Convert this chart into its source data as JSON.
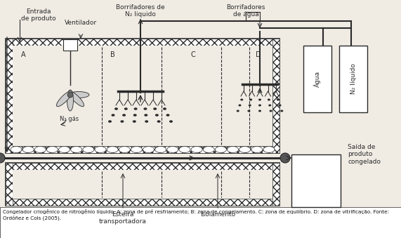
{
  "bg_color": "#f0ece4",
  "line_color": "#2a2a2a",
  "fig_bg": "#f0ece4",
  "white": "#ffffff",
  "caption": "Congelador criogênico de nitrogênio líquido. A: zona de pré resfriamento; B: zona de congelamento. C: zona de equilíbrio. D: zona de vitrificação. Fonte: Ordóñez e Cols (2005).",
  "label_entrada": "Entrada\nde produto",
  "label_ventilador": "Ventilador",
  "label_borr_n2": "Borrifadores de\nN₂ liquido",
  "label_borr_agua": "Borrifadores\nde água",
  "label_n2gas": "N₂ gás",
  "label_esteira": "Esteira\ntransportadora",
  "label_isolamento": "Isolamento",
  "label_agua": "Água",
  "label_n2liq": "N₂ líquido",
  "label_saida": "Saída de\nproduto\ncongelado",
  "zone_labels": [
    "A",
    "B",
    "C",
    "D"
  ]
}
